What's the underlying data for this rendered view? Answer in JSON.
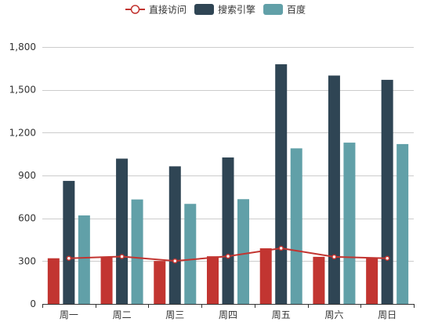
{
  "chart_data": {
    "type": "bar",
    "categories": [
      "周一",
      "周二",
      "周三",
      "周四",
      "周五",
      "周六",
      "周日"
    ],
    "series": [
      {
        "name": "直接访问",
        "render": "bar+line",
        "color": "#c23531",
        "line_color": "#c23531",
        "values": [
          320,
          332,
          301,
          334,
          390,
          330,
          320
        ]
      },
      {
        "name": "搜索引擎",
        "render": "bar",
        "color": "#2f4554",
        "values": [
          862,
          1018,
          964,
          1026,
          1679,
          1600,
          1570
        ]
      },
      {
        "name": "百度",
        "render": "bar",
        "color": "#61a0a8",
        "values": [
          620,
          732,
          701,
          734,
          1090,
          1130,
          1120
        ]
      }
    ],
    "title": "",
    "xlabel": "",
    "ylabel": "",
    "ylim": [
      0,
      1800
    ],
    "yticks": [
      0,
      300,
      600,
      900,
      1200,
      1500,
      1800
    ],
    "ytick_labels": [
      "0",
      "300",
      "600",
      "900",
      "1,200",
      "1,500",
      "1,800"
    ],
    "grid": true,
    "legend_position": "top-center"
  }
}
